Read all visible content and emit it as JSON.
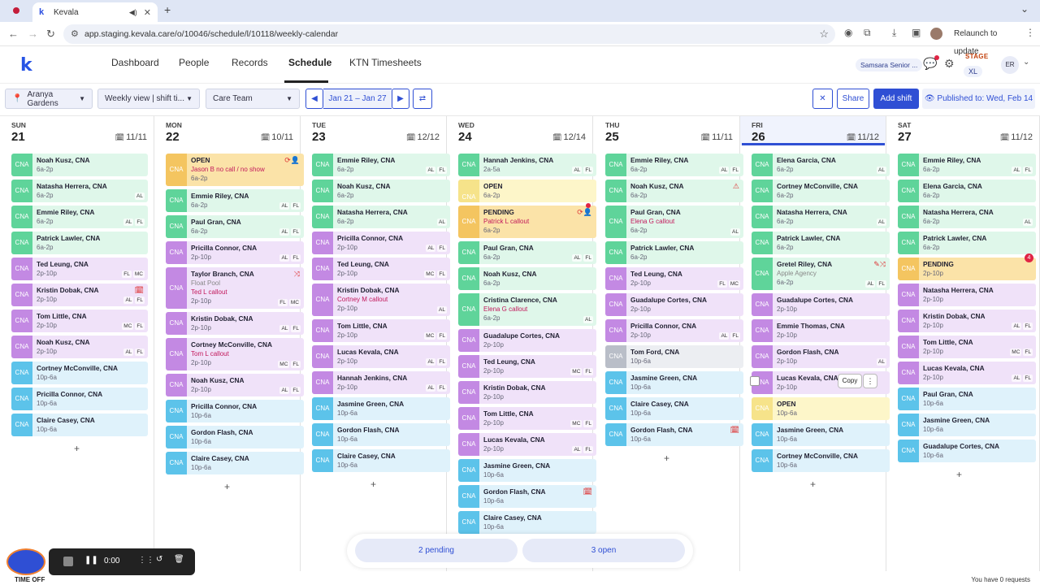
{
  "browser": {
    "tab_title": "Kevala",
    "url": "app.staging.kevala.care/o/10046/schedule/l/10118/weekly-calendar",
    "relaunch": "Relaunch to update"
  },
  "nav": {
    "logo": "k",
    "links": [
      "Dashboard",
      "People",
      "Records",
      "Schedule",
      "KTN Timesheets"
    ],
    "org": "Samsara Senior ...",
    "stage": "STAGE",
    "stage_size": "XL",
    "user": "ER"
  },
  "toolbar": {
    "location": "Aranya Gardens",
    "view": "Weekly view | shift ti...",
    "team": "Care Team",
    "date_range": "Jan 21 – Jan 27",
    "share": "Share",
    "add_shift": "Add shift",
    "published": "Published to: Wed, Feb 14"
  },
  "days": [
    {
      "dow": "SUN",
      "num": "21",
      "count": "11/11"
    },
    {
      "dow": "MON",
      "num": "22",
      "count": "10/11"
    },
    {
      "dow": "TUE",
      "num": "23",
      "count": "12/12"
    },
    {
      "dow": "WED",
      "num": "24",
      "count": "12/14"
    },
    {
      "dow": "THU",
      "num": "25",
      "count": "11/11"
    },
    {
      "dow": "FRI",
      "num": "26",
      "count": "11/12"
    },
    {
      "dow": "SAT",
      "num": "27",
      "count": "11/12"
    }
  ],
  "shifts": [
    [
      {
        "c": "g",
        "role": "CNA",
        "name": "Noah Kusz, CNA",
        "time": "6a-2p",
        "tags": []
      },
      {
        "c": "g",
        "role": "CNA",
        "name": "Natasha Herrera, CNA",
        "time": "6a-2p",
        "tags": [
          "AL"
        ]
      },
      {
        "c": "g",
        "role": "CNA",
        "name": "Emmie Riley, CNA",
        "time": "6a-2p",
        "tags": [
          "AL",
          "FL"
        ]
      },
      {
        "c": "g",
        "role": "CNA",
        "name": "Patrick Lawler, CNA",
        "time": "6a-2p",
        "tags": []
      },
      {
        "c": "p",
        "role": "CNA",
        "name": "Ted Leung, CNA",
        "time": "2p-10p",
        "tags": [
          "FL",
          "MC"
        ]
      },
      {
        "c": "p",
        "role": "CNA",
        "name": "Kristin Dobak, CNA",
        "time": "2p-10p",
        "tags": [
          "AL",
          "FL"
        ],
        "icon": "🗓"
      },
      {
        "c": "p",
        "role": "CNA",
        "name": "Tom Little, CNA",
        "time": "2p-10p",
        "tags": [
          "MC",
          "FL"
        ]
      },
      {
        "c": "p",
        "role": "CNA",
        "name": "Noah Kusz, CNA",
        "time": "2p-10p",
        "tags": [
          "AL",
          "FL"
        ]
      },
      {
        "c": "b",
        "role": "CNA",
        "name": "Cortney McConville, CNA",
        "time": "10p-6a",
        "tags": []
      },
      {
        "c": "b",
        "role": "CNA",
        "name": "Pricilla Connor, CNA",
        "time": "10p-6a",
        "tags": []
      },
      {
        "c": "b",
        "role": "CNA",
        "name": "Claire Casey, CNA",
        "time": "10p-6a",
        "tags": []
      }
    ],
    [
      {
        "c": "o",
        "role": "CNA",
        "name": "OPEN",
        "sub": "Jason B no call / no show",
        "time": "6a-2p",
        "tags": [],
        "icon": "⟳👤",
        "h": "mid"
      },
      {
        "c": "g",
        "role": "CNA",
        "name": "Emmie Riley, CNA",
        "time": "6a-2p",
        "tags": [
          "AL",
          "FL"
        ]
      },
      {
        "c": "g",
        "role": "CNA",
        "name": "Paul Gran, CNA",
        "time": "6a-2p",
        "tags": [
          "AL",
          "FL"
        ]
      },
      {
        "c": "p",
        "role": "CNA",
        "name": "Pricilla Connor, CNA",
        "time": "2p-10p",
        "tags": [
          "AL",
          "FL"
        ]
      },
      {
        "c": "p",
        "role": "CNA",
        "name": "Taylor Branch, CNA",
        "sub2": "Float Pool",
        "sub": "Ted L callout",
        "time": "2p-10p",
        "tags": [
          "FL",
          "MC"
        ],
        "icon": "⤨",
        "h": "big"
      },
      {
        "c": "p",
        "role": "CNA",
        "name": "Kristin Dobak, CNA",
        "time": "2p-10p",
        "tags": [
          "AL",
          "FL"
        ]
      },
      {
        "c": "p",
        "role": "CNA",
        "name": "Cortney McConville, CNA",
        "sub": "Tom L callout",
        "time": "2p-10p",
        "tags": [
          "MC",
          "FL"
        ],
        "h": "mid"
      },
      {
        "c": "p",
        "role": "CNA",
        "name": "Noah Kusz, CNA",
        "time": "2p-10p",
        "tags": [
          "AL",
          "FL"
        ]
      },
      {
        "c": "b",
        "role": "CNA",
        "name": "Pricilla Connor, CNA",
        "time": "10p-6a",
        "tags": []
      },
      {
        "c": "b",
        "role": "CNA",
        "name": "Gordon Flash, CNA",
        "time": "10p-6a",
        "tags": []
      },
      {
        "c": "b",
        "role": "CNA",
        "name": "Claire Casey, CNA",
        "time": "10p-6a",
        "tags": []
      }
    ],
    [
      {
        "c": "g",
        "role": "CNA",
        "name": "Emmie Riley, CNA",
        "time": "6a-2p",
        "tags": [
          "AL",
          "FL"
        ]
      },
      {
        "c": "g",
        "role": "CNA",
        "name": "Noah Kusz, CNA",
        "time": "6a-2p",
        "tags": []
      },
      {
        "c": "g",
        "role": "CNA",
        "name": "Natasha Herrera, CNA",
        "time": "6a-2p",
        "tags": [
          "AL"
        ]
      },
      {
        "c": "p",
        "role": "CNA",
        "name": "Pricilla Connor, CNA",
        "time": "2p-10p",
        "tags": [
          "AL",
          "FL"
        ]
      },
      {
        "c": "p",
        "role": "CNA",
        "name": "Ted Leung, CNA",
        "time": "2p-10p",
        "tags": [
          "MC",
          "FL"
        ]
      },
      {
        "c": "p",
        "role": "CNA",
        "name": "Kristin Dobak, CNA",
        "sub": "Cortney M callout",
        "time": "2p-10p",
        "tags": [
          "AL"
        ],
        "h": "mid"
      },
      {
        "c": "p",
        "role": "CNA",
        "name": "Tom Little, CNA",
        "time": "2p-10p",
        "tags": [
          "MC",
          "FL"
        ]
      },
      {
        "c": "p",
        "role": "CNA",
        "name": "Lucas Kevala, CNA",
        "time": "2p-10p",
        "tags": [
          "AL",
          "FL"
        ]
      },
      {
        "c": "p",
        "role": "CNA",
        "name": "Hannah Jenkins, CNA",
        "time": "2p-10p",
        "tags": [
          "AL",
          "FL"
        ]
      },
      {
        "c": "b",
        "role": "CNA",
        "name": "Jasmine Green, CNA",
        "time": "10p-6a",
        "tags": []
      },
      {
        "c": "b",
        "role": "CNA",
        "name": "Gordon Flash, CNA",
        "time": "10p-6a",
        "tags": []
      },
      {
        "c": "b",
        "role": "CNA",
        "name": "Claire Casey, CNA",
        "time": "10p-6a",
        "tags": []
      }
    ],
    [
      {
        "c": "g",
        "role": "CNA",
        "name": "Hannah Jenkins, CNA",
        "time": "2a-5a",
        "tags": [
          "AL",
          "FL"
        ]
      },
      {
        "c": "y",
        "role": "CNA SUP-C",
        "name": "OPEN",
        "time": "6a-2p",
        "tags": [],
        "sup": true
      },
      {
        "c": "o",
        "role": "CNA",
        "name": "PENDING",
        "sub": "Patrick L callout",
        "time": "6a-2p",
        "tags": [],
        "icon": "⟳👤",
        "h": "mid"
      },
      {
        "c": "g",
        "role": "CNA",
        "name": "Paul Gran, CNA",
        "time": "6a-2p",
        "tags": [
          "AL",
          "FL"
        ]
      },
      {
        "c": "g",
        "role": "CNA",
        "name": "Noah Kusz, CNA",
        "time": "6a-2p",
        "tags": []
      },
      {
        "c": "g",
        "role": "CNA",
        "name": "Cristina Clarence, CNA",
        "sub": "Elena G callout",
        "time": "6a-2p",
        "tags": [
          "AL"
        ],
        "h": "mid"
      },
      {
        "c": "p",
        "role": "CNA",
        "name": "Guadalupe Cortes, CNA",
        "time": "2p-10p",
        "tags": []
      },
      {
        "c": "p",
        "role": "CNA",
        "name": "Ted Leung, CNA",
        "time": "2p-10p",
        "tags": [
          "MC",
          "FL"
        ]
      },
      {
        "c": "p",
        "role": "CNA",
        "name": "Kristin Dobak, CNA",
        "time": "2p-10p",
        "tags": []
      },
      {
        "c": "p",
        "role": "CNA",
        "name": "Tom Little, CNA",
        "time": "2p-10p",
        "tags": [
          "MC",
          "FL"
        ]
      },
      {
        "c": "p",
        "role": "CNA",
        "name": "Lucas Kevala, CNA",
        "time": "2p-10p",
        "tags": [
          "AL",
          "FL"
        ]
      },
      {
        "c": "b",
        "role": "CNA",
        "name": "Jasmine Green, CNA",
        "time": "10p-6a",
        "tags": []
      },
      {
        "c": "b",
        "role": "CNA",
        "name": "Gordon Flash, CNA",
        "time": "10p-6a",
        "tags": [],
        "icon": "🗓"
      },
      {
        "c": "b",
        "role": "CNA",
        "name": "Claire Casey, CNA",
        "time": "10p-6a",
        "tags": []
      }
    ],
    [
      {
        "c": "g",
        "role": "CNA",
        "name": "Emmie Riley, CNA",
        "time": "6a-2p",
        "tags": [
          "AL",
          "FL"
        ]
      },
      {
        "c": "g",
        "role": "CNA",
        "name": "Noah Kusz, CNA",
        "time": "6a-2p",
        "tags": [],
        "icon": "⚠"
      },
      {
        "c": "g",
        "role": "CNA",
        "name": "Paul Gran, CNA",
        "sub": "Elena G callout",
        "time": "6a-2p",
        "tags": [
          "AL"
        ],
        "h": "mid"
      },
      {
        "c": "g",
        "role": "CNA",
        "name": "Patrick Lawler, CNA",
        "time": "6a-2p",
        "tags": []
      },
      {
        "c": "p",
        "role": "CNA",
        "name": "Ted Leung, CNA",
        "time": "2p-10p",
        "tags": [
          "FL",
          "MC"
        ]
      },
      {
        "c": "p",
        "role": "CNA",
        "name": "Guadalupe Cortes, CNA",
        "time": "2p-10p",
        "tags": []
      },
      {
        "c": "p",
        "role": "CNA",
        "name": "Pricilla Connor, CNA",
        "time": "2p-10p",
        "tags": [
          "AL",
          "FL"
        ]
      },
      {
        "c": "gy",
        "role": "CNA",
        "name": "Tom Ford, CNA",
        "time": "10p-6a",
        "tags": []
      },
      {
        "c": "b",
        "role": "CNA",
        "name": "Jasmine Green, CNA",
        "time": "10p-6a",
        "tags": []
      },
      {
        "c": "b",
        "role": "CNA",
        "name": "Claire Casey, CNA",
        "time": "10p-6a",
        "tags": []
      },
      {
        "c": "b",
        "role": "CNA",
        "name": "Gordon Flash, CNA",
        "time": "10p-6a",
        "tags": [],
        "icon": "🗓"
      }
    ],
    [
      {
        "c": "g",
        "role": "CNA",
        "name": "Elena Garcia, CNA",
        "time": "6a-2p",
        "tags": [
          "AL"
        ]
      },
      {
        "c": "g",
        "role": "CNA",
        "name": "Cortney McConville, CNA",
        "time": "6a-2p",
        "tags": []
      },
      {
        "c": "g",
        "role": "CNA",
        "name": "Natasha Herrera, CNA",
        "time": "6a-2p",
        "tags": [
          "AL"
        ]
      },
      {
        "c": "g",
        "role": "CNA",
        "name": "Patrick Lawler, CNA",
        "time": "6a-2p",
        "tags": []
      },
      {
        "c": "g",
        "role": "CNA",
        "name": "Gretel Riley, CNA",
        "sub2": "Apple Agency",
        "time": "6a-2p",
        "tags": [
          "AL",
          "FL"
        ],
        "icon": "✎⤨",
        "h": "mid"
      },
      {
        "c": "p",
        "role": "CNA",
        "name": "Guadalupe Cortes, CNA",
        "time": "2p-10p",
        "tags": []
      },
      {
        "c": "p",
        "role": "CNA",
        "name": "Emmie Thomas, CNA",
        "time": "2p-10p",
        "tags": []
      },
      {
        "c": "p",
        "role": "CNA",
        "name": "Gordon Flash, CNA",
        "time": "2p-10p",
        "tags": [
          "AL"
        ]
      },
      {
        "c": "p",
        "role": "CNA",
        "name": "Lucas Kevala, CNA",
        "time": "2p-10p",
        "tags": []
      },
      {
        "c": "y",
        "role": "CNA",
        "name": "OPEN",
        "time": "10p-6a",
        "tags": []
      },
      {
        "c": "b",
        "role": "CNA",
        "name": "Jasmine Green, CNA",
        "time": "10p-6a",
        "tags": []
      },
      {
        "c": "b",
        "role": "CNA",
        "name": "Cortney McConville, CNA",
        "time": "10p-6a",
        "tags": []
      }
    ],
    [
      {
        "c": "g",
        "role": "CNA",
        "name": "Emmie Riley, CNA",
        "time": "6a-2p",
        "tags": [
          "AL",
          "FL"
        ]
      },
      {
        "c": "g",
        "role": "CNA",
        "name": "Elena Garcia, CNA",
        "time": "6a-2p",
        "tags": []
      },
      {
        "c": "g",
        "role": "CNA",
        "name": "Natasha Herrera, CNA",
        "time": "6a-2p",
        "tags": [
          "AL"
        ]
      },
      {
        "c": "g",
        "role": "CNA",
        "name": "Patrick Lawler, CNA",
        "time": "6a-2p",
        "tags": []
      },
      {
        "c": "o",
        "role": "CNA",
        "name": "PENDING",
        "time": "2p-10p",
        "tags": []
      },
      {
        "c": "p",
        "role": "CNA",
        "name": "Natasha Herrera, CNA",
        "time": "2p-10p",
        "tags": []
      },
      {
        "c": "p",
        "role": "CNA",
        "name": "Kristin Dobak, CNA",
        "time": "2p-10p",
        "tags": [
          "AL",
          "FL"
        ]
      },
      {
        "c": "p",
        "role": "CNA",
        "name": "Tom Little, CNA",
        "time": "2p-10p",
        "tags": [
          "MC",
          "FL"
        ]
      },
      {
        "c": "p",
        "role": "CNA",
        "name": "Lucas Kevala, CNA",
        "time": "2p-10p",
        "tags": [
          "AL",
          "FL"
        ]
      },
      {
        "c": "b",
        "role": "CNA",
        "name": "Paul Gran, CNA",
        "time": "10p-6a",
        "tags": []
      },
      {
        "c": "b",
        "role": "CNA",
        "name": "Jasmine Green, CNA",
        "time": "10p-6a",
        "tags": []
      },
      {
        "c": "b",
        "role": "CNA",
        "name": "Guadalupe Cortes, CNA",
        "time": "10p-6a",
        "tags": []
      }
    ]
  ],
  "add_label": "+",
  "copy_label": "Copy",
  "more_label": "⋮",
  "sat_badge": "4",
  "bottom": {
    "pending": "2 pending",
    "open": "3 open"
  },
  "recorder": {
    "time": "0:00"
  },
  "footer": {
    "left": "TIME OFF",
    "right": "You have 0 requests"
  }
}
